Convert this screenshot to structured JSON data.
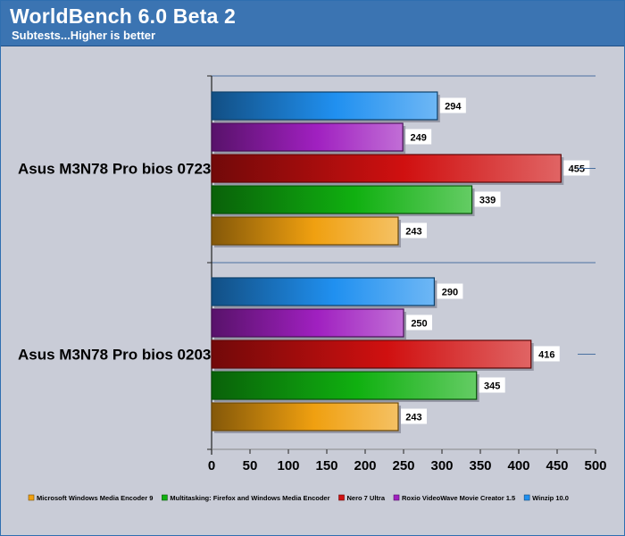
{
  "header": {
    "title": "WorldBench 6.0 Beta 2",
    "subtitle": "Subtests...Higher is better"
  },
  "chart_data": {
    "type": "bar",
    "orientation": "horizontal",
    "title": "WorldBench 6.0 Beta 2",
    "subtitle": "Subtests...Higher is better",
    "xlabel": "",
    "ylabel": "",
    "xlim": [
      0,
      500
    ],
    "x_ticks": [
      "0",
      "50",
      "100",
      "150",
      "200",
      "250",
      "300",
      "350",
      "400",
      "450",
      "500"
    ],
    "grid": false,
    "legend_position": "bottom",
    "categories": [
      "Asus M3N78 Pro bios 0723",
      "Asus M3N78 Pro bios 0203"
    ],
    "series": [
      {
        "name": "Microsoft Windows Media Encoder 9",
        "values": [
          243,
          243
        ],
        "color": "#f0a010"
      },
      {
        "name": "Multitasking: Firefox and Windows Media Encoder",
        "values": [
          339,
          345
        ],
        "color": "#10b010"
      },
      {
        "name": "Nero 7 Ultra",
        "values": [
          455,
          416
        ],
        "color": "#d01010"
      },
      {
        "name": "Roxio VideoWave Movie Creator 1.5",
        "values": [
          249,
          250
        ],
        "color": "#a020c0"
      },
      {
        "name": "Winzip 10.0",
        "values": [
          294,
          290
        ],
        "color": "#2090f0"
      }
    ]
  }
}
